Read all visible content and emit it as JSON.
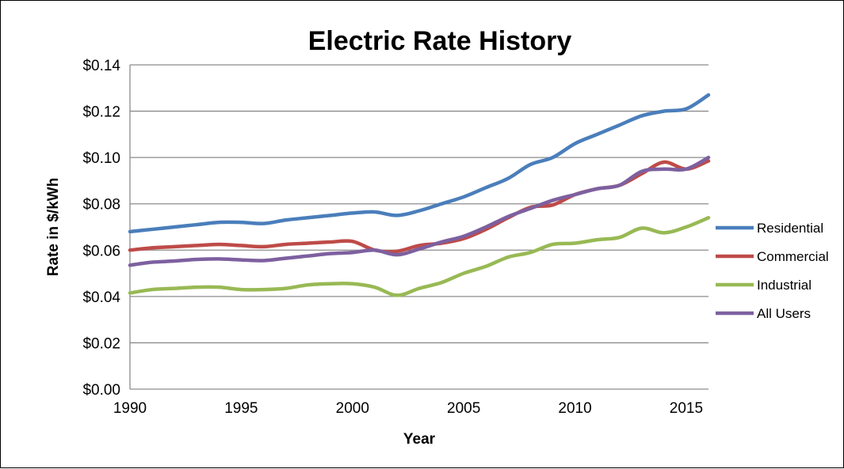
{
  "chart_data": {
    "type": "line",
    "title": "Electric Rate History",
    "xlabel": "Year",
    "ylabel": "Rate in $/kWh",
    "xlim": [
      1990,
      2016
    ],
    "ylim": [
      0,
      0.14
    ],
    "x_ticks": [
      "1990",
      "1995",
      "2000",
      "2005",
      "2010",
      "2015"
    ],
    "y_ticks": [
      "$0.00",
      "$0.02",
      "$0.04",
      "$0.06",
      "$0.08",
      "$0.10",
      "$0.12",
      "$0.14"
    ],
    "grid": true,
    "legend_position": "right",
    "x": [
      1990,
      1991,
      1992,
      1993,
      1994,
      1995,
      1996,
      1997,
      1998,
      1999,
      2000,
      2001,
      2002,
      2003,
      2004,
      2005,
      2006,
      2007,
      2008,
      2009,
      2010,
      2011,
      2012,
      2013,
      2014,
      2015,
      2016
    ],
    "series": [
      {
        "name": "Residential",
        "color": "#4a7ebb",
        "values": [
          0.068,
          0.069,
          0.07,
          0.071,
          0.072,
          0.072,
          0.0715,
          0.073,
          0.074,
          0.075,
          0.076,
          0.0765,
          0.075,
          0.077,
          0.08,
          0.083,
          0.087,
          0.091,
          0.097,
          0.1,
          0.106,
          0.11,
          0.114,
          0.118,
          0.12,
          0.121,
          0.127
        ]
      },
      {
        "name": "Commercial",
        "color": "#be4b48",
        "values": [
          0.06,
          0.061,
          0.0615,
          0.062,
          0.0625,
          0.062,
          0.0615,
          0.0625,
          0.063,
          0.0635,
          0.0638,
          0.06,
          0.0595,
          0.062,
          0.063,
          0.065,
          0.069,
          0.074,
          0.0785,
          0.0795,
          0.084,
          0.0865,
          0.088,
          0.093,
          0.098,
          0.095,
          0.0985
        ]
      },
      {
        "name": "Industrial",
        "color": "#98b954",
        "values": [
          0.0415,
          0.043,
          0.0435,
          0.044,
          0.044,
          0.043,
          0.043,
          0.0435,
          0.045,
          0.0455,
          0.0455,
          0.044,
          0.0405,
          0.0435,
          0.046,
          0.05,
          0.053,
          0.057,
          0.059,
          0.0625,
          0.063,
          0.0645,
          0.0655,
          0.0695,
          0.0675,
          0.07,
          0.074
        ]
      },
      {
        "name": "All Users",
        "color": "#7d60a0",
        "values": [
          0.0535,
          0.0548,
          0.0553,
          0.056,
          0.0562,
          0.0558,
          0.0555,
          0.0565,
          0.0575,
          0.0585,
          0.059,
          0.06,
          0.058,
          0.0605,
          0.0635,
          0.066,
          0.07,
          0.0745,
          0.078,
          0.0815,
          0.084,
          0.0865,
          0.088,
          0.094,
          0.095,
          0.095,
          0.1
        ]
      }
    ]
  }
}
